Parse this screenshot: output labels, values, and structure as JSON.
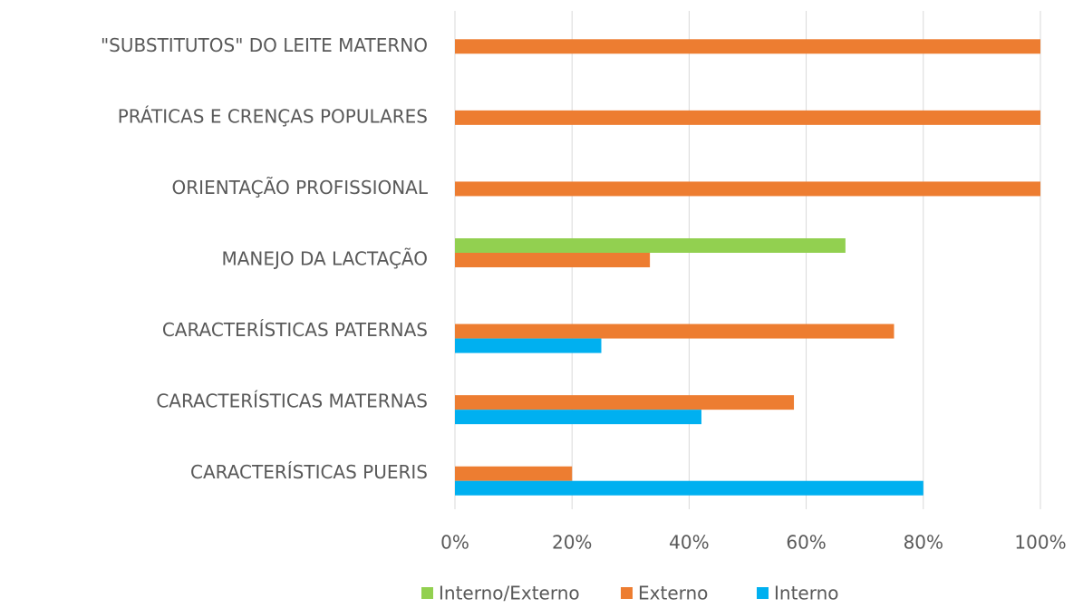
{
  "chart_data": {
    "type": "bar",
    "orientation": "horizontal",
    "categories": [
      "\"SUBSTITUTOS\" DO LEITE MATERNO",
      "PRÁTICAS E CRENÇAS POPULARES",
      "ORIENTAÇÃO PROFISSIONAL",
      "MANEJO DA LACTAÇÃO",
      "CARACTERÍSTICAS PATERNAS",
      "CARACTERÍSTICAS MATERNAS",
      "CARACTERÍSTICAS PUERIS"
    ],
    "series": [
      {
        "name": "Interno/Externo",
        "color": "#92d050",
        "values": [
          null,
          null,
          null,
          66.7,
          null,
          null,
          null
        ]
      },
      {
        "name": "Externo",
        "color": "#ed7d31",
        "values": [
          100,
          100,
          100,
          33.3,
          75,
          57.9,
          20
        ]
      },
      {
        "name": "Interno",
        "color": "#00b0f0",
        "values": [
          null,
          null,
          null,
          null,
          25,
          42.1,
          80
        ]
      }
    ],
    "xlim": [
      0,
      100
    ],
    "xticks": [
      {
        "value": 0,
        "label": "0%"
      },
      {
        "value": 20,
        "label": "20%"
      },
      {
        "value": 40,
        "label": "40%"
      },
      {
        "value": 60,
        "label": "60%"
      },
      {
        "value": 80,
        "label": "80%"
      },
      {
        "value": 100,
        "label": "100%"
      }
    ],
    "grid": true,
    "legend": "bottom"
  }
}
